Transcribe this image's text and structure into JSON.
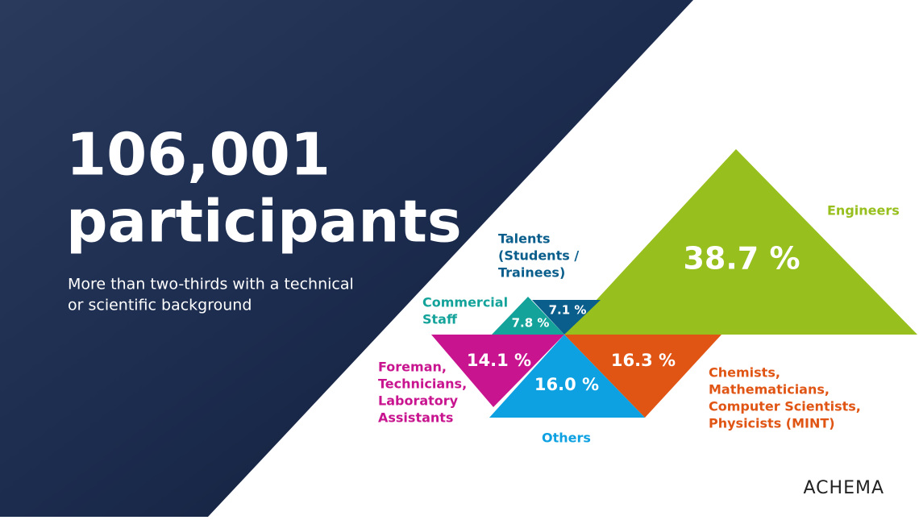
{
  "headline": {
    "number": "106,001",
    "word": "participants",
    "subtitle": [
      "More than two-thirds with a technical",
      "or scientific background"
    ]
  },
  "segments": [
    {
      "label": [
        "Engineers"
      ],
      "value": "38.7 %"
    },
    {
      "label": [
        "Talents",
        "(Students /",
        "Trainees)"
      ],
      "value": "7.1 %"
    },
    {
      "label": [
        "Commercial",
        "Staff"
      ],
      "value": "7.8 %"
    },
    {
      "label": [
        "Foreman,",
        "Technicians,",
        "Laboratory",
        "Assistants"
      ],
      "value": "14.1 %"
    },
    {
      "label": [
        "Others"
      ],
      "value": "16.0 %"
    },
    {
      "label": [
        "Chemists,",
        "Mathematicians,",
        "Computer Scientists,",
        "Physicists (MINT)"
      ],
      "value": "16.3 %"
    }
  ],
  "logo": "ACHEMA"
}
